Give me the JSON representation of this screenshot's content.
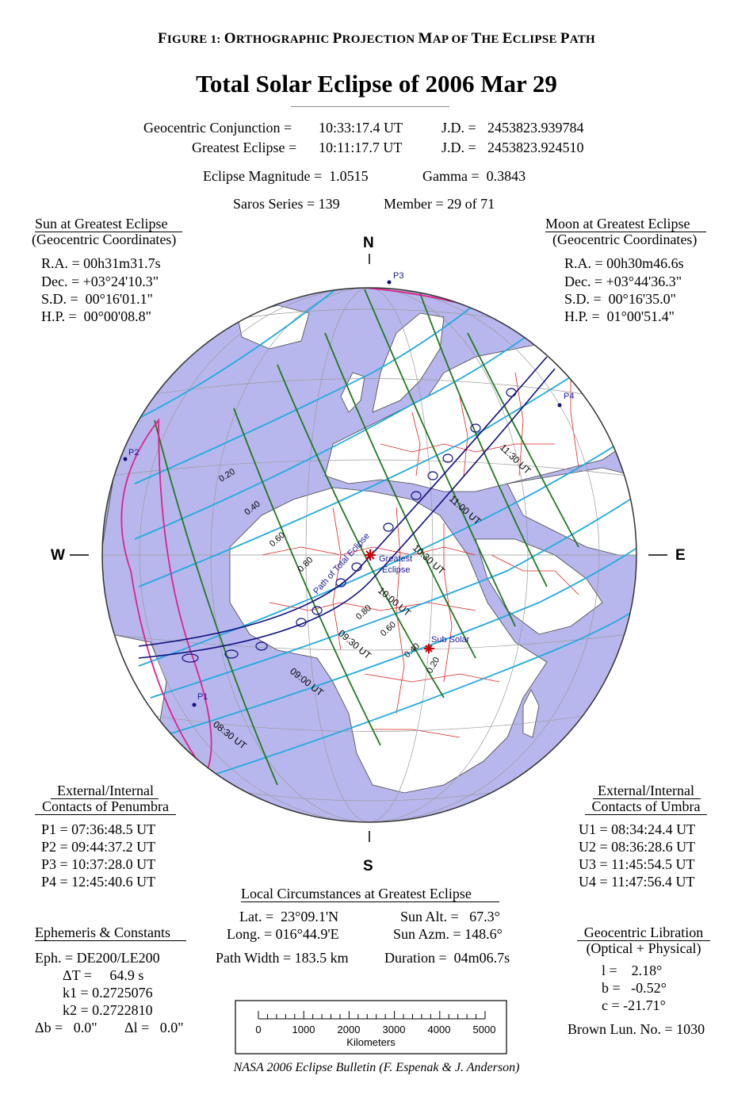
{
  "figure_title": {
    "prefix": "F",
    "rest1": "IGURE 1: ",
    "o": "O",
    "rest2": "RTHOGRAPHIC ",
    "p": "P",
    "rest3": "ROJECTION ",
    "m": "M",
    "rest4": "AP OF ",
    "t": "T",
    "rest5": "HE ",
    "e": "E",
    "rest6": "CLIPSE ",
    "p2": "P",
    "rest7": "ATH"
  },
  "title": "Total Solar Eclipse of  2006 Mar 29",
  "header": {
    "conj_label": "Geocentric Conjunction =",
    "conj_time": "10:33:17.4 UT",
    "conj_jd_label": "J.D. =",
    "conj_jd": "2453823.939784",
    "ge_label": "Greatest Eclipse =",
    "ge_time": "10:11:17.7 UT",
    "ge_jd_label": "J.D. =",
    "ge_jd": "2453823.924510",
    "magnitude": "Eclipse Magnitude =  1.0515",
    "gamma": "Gamma =  0.3843",
    "saros": "Saros Series = 139",
    "member": "Member = 29 of 71"
  },
  "sun": {
    "title": "Sun at Greatest Eclipse",
    "sub": "(Geocentric Coordinates)",
    "ra": "R.A. = 00h31m31.7s",
    "dec": "Dec. = +03°24'10.3\"",
    "sd": "S.D. =  00°16'01.1\"",
    "hp": "H.P. =  00°00'08.8\""
  },
  "moon": {
    "title": "Moon at Greatest Eclipse",
    "sub": "(Geocentric Coordinates)",
    "ra": "R.A. = 00h30m46.6s",
    "dec": "Dec. = +03°44'36.3\"",
    "sd": "S.D. =  00°16'35.0\"",
    "hp": "H.P. =  01°00'51.4\""
  },
  "penumbra": {
    "title1": "External/Internal",
    "title2": "Contacts of Penumbra",
    "p1": "P1 = 07:36:48.5 UT",
    "p2": "P2 = 09:44:37.2 UT",
    "p3": "P3 = 10:37:28.0 UT",
    "p4": "P4 = 12:45:40.6 UT"
  },
  "umbra": {
    "title1": "External/Internal",
    "title2": "Contacts of Umbra",
    "u1": "U1 = 08:34:24.4 UT",
    "u2": "U2 = 08:36:28.6 UT",
    "u3": "U3 = 11:45:54.5 UT",
    "u4": "U4 = 11:47:56.4 UT"
  },
  "local": {
    "title": "Local Circumstances at Greatest Eclipse",
    "lat": "Lat. =  23°09.1'N",
    "long": "Long. = 016°44.9'E",
    "alt": "Sun Alt. =   67.3°",
    "azm": "Sun Azm. = 148.6°",
    "width": "Path Width = 183.5 km",
    "duration": "Duration =  04m06.7s"
  },
  "ephem": {
    "title": "Ephemeris & Constants",
    "eph": "Eph. = DE200/LE200",
    "dt": "ΔT =     64.9 s",
    "k1": "k1 = 0.2725076",
    "k2": "k2 = 0.2722810",
    "db": "Δb =   0.0\"",
    "dl": "Δl =   0.0\""
  },
  "libration": {
    "title": "Geocentric Libration",
    "sub": "(Optical + Physical)",
    "l": "l =    2.18°",
    "b": "b =   -0.52°",
    "c": "c = -21.71°",
    "brown": "Brown Lun. No. = 1030"
  },
  "scale": {
    "ticks": [
      "0",
      "1000",
      "2000",
      "3000",
      "4000",
      "5000"
    ],
    "unit": "Kilometers"
  },
  "compass": {
    "n": "N",
    "s": "S",
    "e": "E",
    "w": "W"
  },
  "map_labels": {
    "p1": "P1",
    "p2": "P2",
    "p3": "P3",
    "p4": "P4",
    "greatest1": "Greatest",
    "greatest2": "Eclipse",
    "path": "Path of Total Eclipse",
    "subsolar": "Sub Solar",
    "mag": [
      "0.20",
      "0.40",
      "0.60",
      "0.80",
      "0.80",
      "0.60",
      "0.40",
      "0.20"
    ],
    "times": [
      "08:30 UT",
      "09:00 UT",
      "09:30 UT",
      "10:00 UT",
      "10:30 UT",
      "11:00 UT",
      "11:30 UT"
    ]
  },
  "colors": {
    "ocean": "#b7b7ee",
    "night": "#888888",
    "land": "#ffffff",
    "magnitude": "#22aadd",
    "time": "#227722",
    "penumbra": "#e0208a",
    "umbra_path": "#101080",
    "borders": "#dd2222",
    "accent": "#cc0000"
  },
  "footer": "NASA 2006 Eclipse Bulletin (F. Espenak & J. Anderson)"
}
